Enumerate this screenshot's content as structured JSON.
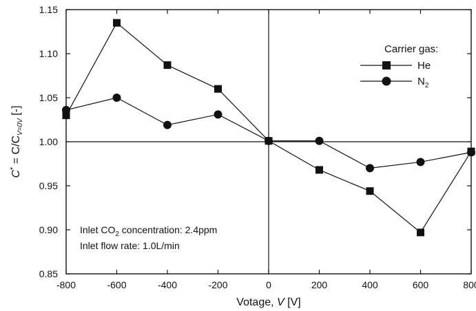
{
  "chart_data": {
    "type": "line",
    "xlabel": "Votage, V [V]",
    "xlabel_parts": {
      "main": "Votage, ",
      "var": "V",
      "unit": " [V]"
    },
    "ylabel_parts": {
      "c": "C",
      "star": "*",
      "eq": " = C/C",
      "sub": "V=0V",
      "unit": " [-]"
    },
    "xlim": [
      -800,
      800
    ],
    "ylim": [
      0.85,
      1.15
    ],
    "xticks": [
      -800,
      -600,
      -400,
      -200,
      0,
      200,
      400,
      600,
      800
    ],
    "xtick_labels": [
      "-800",
      "-600",
      "-400",
      "-200",
      "0",
      "200",
      "400",
      "600",
      "800"
    ],
    "yticks": [
      0.85,
      0.9,
      0.95,
      1.0,
      1.05,
      1.1,
      1.15
    ],
    "ytick_labels": [
      "0.85",
      "0.90",
      "0.95",
      "1.00",
      "1.05",
      "1.10",
      "1.15"
    ],
    "reference_lines": {
      "horizontal_y": 1.0,
      "vertical_x": 0
    },
    "legend": {
      "title": "Carrier gas:",
      "placement": "top-right",
      "entries": [
        {
          "label_main": "He",
          "label_sub": "",
          "marker": "square"
        },
        {
          "label_main": "N",
          "label_sub": "2",
          "marker": "circle"
        }
      ]
    },
    "series": [
      {
        "name": "He",
        "marker": "square",
        "color": "#111111",
        "x": [
          -800,
          -600,
          -400,
          -200,
          0,
          200,
          400,
          600,
          800
        ],
        "y": [
          1.03,
          1.135,
          1.087,
          1.06,
          1.001,
          0.968,
          0.944,
          0.897,
          0.989
        ]
      },
      {
        "name": "N2",
        "marker": "circle",
        "color": "#111111",
        "x": [
          -800,
          -600,
          -400,
          -200,
          0,
          200,
          400,
          600,
          800
        ],
        "y": [
          1.036,
          1.05,
          1.019,
          1.031,
          1.001,
          1.001,
          0.97,
          0.977,
          0.988
        ]
      }
    ],
    "annotations": [
      {
        "parts": [
          "Inlet CO",
          "2",
          " concentration: 2.4ppm"
        ]
      },
      {
        "parts": [
          "Inlet flow rate: 1.0L/min"
        ]
      }
    ]
  }
}
